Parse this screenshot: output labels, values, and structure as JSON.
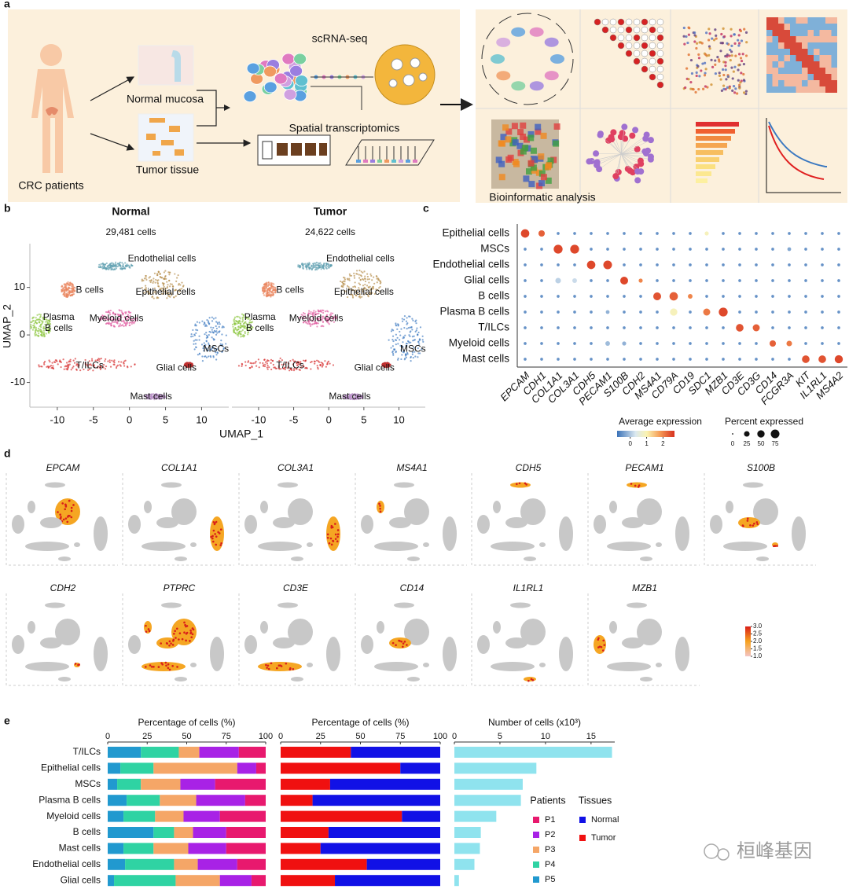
{
  "panel_labels": [
    "a",
    "b",
    "c",
    "d",
    "e"
  ],
  "panel_a": {
    "patients": "CRC patients",
    "normal": "Normal mucosa",
    "tumor": "Tumor tissue",
    "scrna": "scRNA-seq",
    "spatial": "Spatial transcriptomics",
    "analysis": "Bioinformatic analysis"
  },
  "panel_b": {
    "type": "scatter",
    "x_label": "UMAP_1",
    "y_label": "UMAP_2",
    "xlim": [
      -13.8,
      14.2
    ],
    "ylim": [
      -15.2,
      19.2
    ],
    "xticks": [
      -10,
      -5,
      0,
      5,
      10
    ],
    "yticks": [
      -10,
      0,
      10
    ],
    "panels": [
      {
        "title": "Normal",
        "subtitle": "29,481 cells"
      },
      {
        "title": "Tumor",
        "subtitle": "24,622 cells"
      }
    ],
    "clusters": [
      "Endothelial cells",
      "B cells",
      "Epithelial cells",
      "Myeloid cells",
      "Plasma B cells",
      "MSCs",
      "T/ILCs",
      "Glial cells",
      "Mast cells"
    ]
  },
  "panel_c": {
    "type": "dot",
    "rows": [
      "Epithelial cells",
      "MSCs",
      "Endothelial cells",
      "Glial cells",
      "B cells",
      "Plasma B cells",
      "T/ILCs",
      "Myeloid cells",
      "Mast cells"
    ],
    "genes": [
      "EPCAM",
      "CDH1",
      "COL1A1",
      "COL3A1",
      "CDH5",
      "PECAM1",
      "S100B",
      "CDH2",
      "MS4A1",
      "CD79A",
      "CD19",
      "SDC1",
      "MZB1",
      "CD3E",
      "CD3G",
      "CD14",
      "FCGR3A",
      "KIT",
      "IL1RL1",
      "MS4A2"
    ],
    "pct": [
      [
        70,
        35,
        3,
        3,
        3,
        3,
        3,
        3,
        3,
        3,
        3,
        10,
        3,
        3,
        3,
        3,
        3,
        3,
        3,
        3
      ],
      [
        3,
        3,
        80,
        80,
        3,
        3,
        3,
        3,
        3,
        3,
        3,
        3,
        3,
        3,
        3,
        3,
        8,
        3,
        3,
        3
      ],
      [
        3,
        3,
        3,
        3,
        70,
        75,
        3,
        3,
        3,
        3,
        3,
        3,
        3,
        3,
        3,
        3,
        3,
        3,
        3,
        3
      ],
      [
        3,
        3,
        25,
        15,
        3,
        3,
        60,
        10,
        3,
        3,
        3,
        3,
        3,
        3,
        3,
        3,
        3,
        3,
        3,
        3
      ],
      [
        3,
        3,
        3,
        3,
        3,
        3,
        3,
        3,
        60,
        70,
        15,
        3,
        3,
        3,
        3,
        3,
        3,
        3,
        3,
        3
      ],
      [
        3,
        3,
        3,
        3,
        3,
        8,
        3,
        3,
        3,
        50,
        3,
        45,
        80,
        3,
        3,
        3,
        3,
        3,
        3,
        3
      ],
      [
        3,
        3,
        3,
        3,
        3,
        3,
        3,
        3,
        3,
        3,
        3,
        3,
        3,
        55,
        45,
        3,
        3,
        3,
        3,
        3
      ],
      [
        3,
        3,
        3,
        3,
        3,
        15,
        10,
        3,
        3,
        3,
        3,
        3,
        3,
        3,
        3,
        35,
        25,
        3,
        3,
        3
      ],
      [
        3,
        3,
        3,
        3,
        3,
        3,
        3,
        3,
        3,
        3,
        3,
        3,
        3,
        3,
        3,
        3,
        3,
        55,
        55,
        65
      ]
    ],
    "avg": [
      [
        2.5,
        2.3,
        -0.5,
        -0.5,
        -0.5,
        -0.5,
        -0.5,
        -0.5,
        -0.5,
        -0.5,
        -0.5,
        0.9,
        -0.5,
        -0.5,
        -0.5,
        -0.5,
        -0.5,
        -0.5,
        -0.5,
        -0.5
      ],
      [
        -0.5,
        -0.5,
        2.5,
        2.5,
        -0.5,
        -0.5,
        -0.5,
        -0.5,
        -0.5,
        -0.5,
        -0.5,
        -0.5,
        -0.5,
        -0.5,
        -0.5,
        -0.5,
        -0.3,
        -0.5,
        -0.5,
        -0.5
      ],
      [
        -0.5,
        -0.5,
        -0.5,
        -0.5,
        2.5,
        2.5,
        -0.5,
        -0.5,
        -0.5,
        -0.5,
        -0.5,
        -0.5,
        -0.5,
        -0.5,
        -0.5,
        -0.5,
        -0.5,
        -0.5,
        -0.5,
        -0.5
      ],
      [
        -0.5,
        -0.5,
        0.1,
        0.2,
        -0.5,
        -0.5,
        2.5,
        2.0,
        -0.5,
        -0.5,
        -0.5,
        -0.5,
        -0.5,
        -0.5,
        -0.5,
        -0.5,
        -0.5,
        -0.5,
        -0.5,
        -0.5
      ],
      [
        -0.5,
        -0.5,
        -0.5,
        -0.5,
        -0.5,
        -0.5,
        -0.5,
        -0.5,
        2.4,
        2.3,
        2.0,
        -0.5,
        -0.5,
        -0.5,
        -0.5,
        -0.5,
        -0.5,
        -0.5,
        -0.5,
        -0.5
      ],
      [
        -0.5,
        -0.5,
        -0.5,
        -0.5,
        -0.5,
        -0.2,
        -0.5,
        -0.5,
        -0.5,
        0.9,
        -0.5,
        2.1,
        2.5,
        -0.5,
        -0.5,
        -0.5,
        -0.5,
        -0.5,
        -0.5,
        -0.5
      ],
      [
        -0.5,
        -0.5,
        -0.5,
        -0.5,
        -0.5,
        -0.5,
        -0.5,
        -0.5,
        -0.5,
        -0.5,
        -0.5,
        -0.5,
        -0.5,
        2.4,
        2.3,
        -0.5,
        -0.5,
        -0.5,
        -0.5,
        -0.5
      ],
      [
        -0.5,
        -0.5,
        -0.5,
        -0.5,
        -0.5,
        -0.1,
        -0.2,
        -0.5,
        -0.5,
        -0.5,
        -0.5,
        -0.5,
        -0.5,
        -0.5,
        -0.5,
        2.3,
        2.1,
        -0.5,
        -0.5,
        -0.5
      ],
      [
        -0.5,
        -0.5,
        -0.5,
        -0.5,
        -0.5,
        -0.5,
        -0.5,
        -0.5,
        -0.5,
        -0.5,
        -0.5,
        -0.5,
        -0.5,
        -0.5,
        -0.5,
        -0.5,
        -0.5,
        2.4,
        2.4,
        2.5
      ]
    ],
    "color_label": "Average expression",
    "color_lim": [
      -0.8,
      2.7
    ],
    "color_ticks": [
      0,
      1,
      2
    ],
    "size_label": "Percent expressed",
    "size_ticks": [
      0,
      25,
      50,
      75
    ]
  },
  "panel_d": {
    "genes": [
      "EPCAM",
      "COL1A1",
      "COL3A1",
      "MS4A1",
      "CDH5",
      "PECAM1",
      "S100B",
      "CDH2",
      "PTPRC",
      "CD3E",
      "CD14",
      "IL1RL1",
      "MZB1"
    ],
    "color_lim": [
      1,
      3
    ],
    "color_ticks": [
      {
        "value": 3,
        "label": "3.0"
      },
      {
        "value": 2.5,
        "label": "2.5"
      },
      {
        "value": 2,
        "label": "2.0"
      },
      {
        "value": 1.5,
        "label": "1.5"
      },
      {
        "value": 1,
        "label": "1.0"
      }
    ]
  },
  "panel_e": {
    "categories": [
      "T/ILCs",
      "Epithelial cells",
      "MSCs",
      "Plasma B cells",
      "Myeloid cells",
      "B cells",
      "Mast cells",
      "Endothelial cells",
      "Glial cells"
    ],
    "charts": [
      {
        "type": "stacked_bar",
        "title": "Percentage of cells (%)",
        "xlim": [
          0,
          100
        ],
        "xticks": [
          0,
          25,
          50,
          75,
          100
        ],
        "legend_title": "Patients",
        "series": [
          {
            "name": "P1",
            "color": "#e8196e",
            "values": [
              17,
              6,
              32,
              13,
              29,
              25,
              25,
              18,
              9
            ]
          },
          {
            "name": "P2",
            "color": "#a822e6",
            "values": [
              25,
              12,
              22,
              31,
              23,
              21,
              24,
              25,
              20
            ]
          },
          {
            "name": "P3",
            "color": "#f5a667",
            "values": [
              13,
              53,
              25,
              23,
              18,
              12,
              22,
              15,
              28
            ]
          },
          {
            "name": "P4",
            "color": "#2fd3a3",
            "values": [
              24,
              21,
              15,
              21,
              20,
              13,
              19,
              31,
              39
            ]
          },
          {
            "name": "P5",
            "color": "#2199cf",
            "values": [
              21,
              8,
              6,
              12,
              10,
              29,
              10,
              11,
              4
            ]
          }
        ]
      },
      {
        "type": "stacked_bar",
        "title": "Percentage of cells (%)",
        "xlim": [
          0,
          100
        ],
        "xticks": [
          0,
          25,
          50,
          75,
          100
        ],
        "legend_title": "Tissues",
        "series": [
          {
            "name": "Normal",
            "color": "#1111e6",
            "values": [
              56,
              25,
              69,
              80,
              24,
              70,
              75,
              46,
              66
            ]
          },
          {
            "name": "Tumor",
            "color": "#f01010",
            "values": [
              44,
              75,
              31,
              20,
              76,
              30,
              25,
              54,
              34
            ]
          }
        ]
      },
      {
        "type": "bar",
        "title": "Number of cells (x10³)",
        "xlim": [
          0,
          17.6
        ],
        "xticks": [
          0,
          5,
          10,
          15
        ],
        "color": "#8fe3ee",
        "values": [
          17.3,
          9,
          7.5,
          7.3,
          4.6,
          2.9,
          2.8,
          2.2,
          0.5
        ]
      }
    ]
  },
  "watermark": "桓峰基因"
}
